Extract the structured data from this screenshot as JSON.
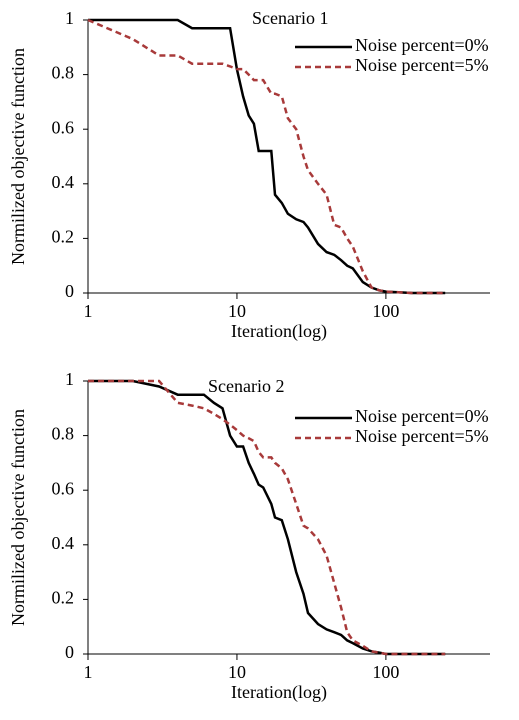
{
  "chart_data": [
    {
      "type": "line",
      "annotation": "Scenario 1",
      "xlabel": "Iteration(log)",
      "ylabel": "Normilized objective function",
      "xlog": true,
      "xlim": [
        1,
        500
      ],
      "xticks": [
        1,
        10,
        100
      ],
      "ylim": [
        0,
        1
      ],
      "yticks": [
        0,
        0.2,
        0.4,
        0.6,
        0.8,
        1
      ],
      "legend": "upper right",
      "x": [
        1,
        2,
        3,
        4,
        5,
        6,
        7,
        8,
        9,
        10,
        11,
        12,
        13,
        14,
        15,
        17,
        18,
        20,
        22,
        25,
        28,
        30,
        35,
        40,
        45,
        50,
        55,
        60,
        70,
        80,
        90,
        100,
        150,
        250
      ],
      "series": [
        {
          "name": "Noise percent=0%",
          "color": "#000000",
          "linestyle": "solid",
          "values": [
            1,
            1,
            1,
            1,
            0.97,
            0.97,
            0.97,
            0.97,
            0.97,
            0.82,
            0.72,
            0.65,
            0.62,
            0.52,
            0.52,
            0.52,
            0.36,
            0.33,
            0.29,
            0.27,
            0.26,
            0.24,
            0.18,
            0.15,
            0.14,
            0.12,
            0.1,
            0.09,
            0.04,
            0.02,
            0.01,
            0.005,
            0,
            0
          ]
        },
        {
          "name": "Noise percent=5%",
          "color": "#a83a3a",
          "linestyle": "dashed",
          "values": [
            1,
            0.93,
            0.87,
            0.87,
            0.84,
            0.84,
            0.84,
            0.84,
            0.83,
            0.82,
            0.82,
            0.8,
            0.78,
            0.78,
            0.78,
            0.73,
            0.73,
            0.72,
            0.64,
            0.6,
            0.5,
            0.45,
            0.4,
            0.36,
            0.25,
            0.24,
            0.2,
            0.17,
            0.08,
            0.02,
            0.01,
            0.005,
            0,
            0
          ]
        }
      ]
    },
    {
      "type": "line",
      "annotation": "Scenario 2",
      "xlabel": "Iteration(log)",
      "ylabel": "Normilized objective function",
      "xlog": true,
      "xlim": [
        1,
        500
      ],
      "xticks": [
        1,
        10,
        100
      ],
      "ylim": [
        0,
        1
      ],
      "yticks": [
        0,
        0.2,
        0.4,
        0.6,
        0.8,
        1
      ],
      "legend": "upper right",
      "x": [
        1,
        2,
        3,
        4,
        5,
        6,
        7,
        8,
        9,
        10,
        11,
        12,
        13,
        14,
        15,
        17,
        18,
        20,
        22,
        25,
        28,
        30,
        35,
        40,
        45,
        50,
        55,
        60,
        70,
        80,
        90,
        100,
        150,
        250
      ],
      "series": [
        {
          "name": "Noise percent=0%",
          "color": "#000000",
          "linestyle": "solid",
          "values": [
            1,
            1,
            0.98,
            0.95,
            0.95,
            0.95,
            0.92,
            0.9,
            0.8,
            0.76,
            0.76,
            0.7,
            0.66,
            0.62,
            0.61,
            0.55,
            0.5,
            0.49,
            0.42,
            0.3,
            0.22,
            0.15,
            0.11,
            0.09,
            0.08,
            0.07,
            0.05,
            0.04,
            0.02,
            0.01,
            0.005,
            0,
            0,
            0
          ]
        },
        {
          "name": "Noise percent=5%",
          "color": "#a83a3a",
          "linestyle": "dashed",
          "values": [
            1,
            1,
            1,
            0.92,
            0.91,
            0.9,
            0.88,
            0.86,
            0.84,
            0.82,
            0.8,
            0.79,
            0.78,
            0.74,
            0.72,
            0.72,
            0.7,
            0.68,
            0.64,
            0.55,
            0.47,
            0.46,
            0.42,
            0.36,
            0.26,
            0.17,
            0.08,
            0.05,
            0.03,
            0.01,
            0.005,
            0,
            0,
            0
          ]
        }
      ]
    }
  ]
}
